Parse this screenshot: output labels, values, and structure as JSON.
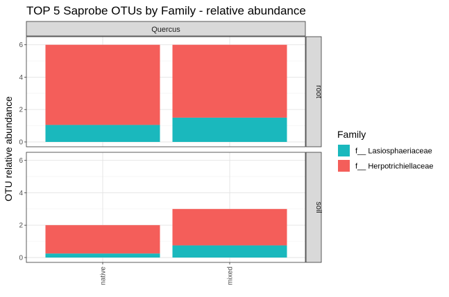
{
  "chart_data": {
    "type": "bar",
    "title": "TOP 5 Saprobe OTUs by Family - relative abundance",
    "xlabel": "",
    "ylabel": "OTU relative abundance",
    "column_facet": "Quercus",
    "categories": [
      "native",
      "mixed"
    ],
    "y_ticks": [
      "0",
      "2",
      "4",
      "6"
    ],
    "ylim": [
      0,
      6.2
    ],
    "stacked": true,
    "grid": true,
    "legend": {
      "title": "Family",
      "position": "right",
      "items": [
        {
          "label": "f__ Lasiosphaeriaceae",
          "color": "#1ab8bd"
        },
        {
          "label": "f__ Herpotrichiellaceae",
          "color": "#f45e5a"
        }
      ]
    },
    "panels": [
      {
        "row_label": "root",
        "series": [
          {
            "name": "f__ Lasiosphaeriaceae",
            "values": [
              1.05,
              1.5
            ]
          },
          {
            "name": "f__ Herpotrichiellaceae",
            "values": [
              4.95,
              4.5
            ]
          }
        ]
      },
      {
        "row_label": "soil",
        "series": [
          {
            "name": "f__ Lasiosphaeriaceae",
            "values": [
              0.25,
              0.75
            ]
          },
          {
            "name": "f__ Herpotrichiellaceae",
            "values": [
              1.75,
              2.25
            ]
          }
        ]
      }
    ]
  }
}
